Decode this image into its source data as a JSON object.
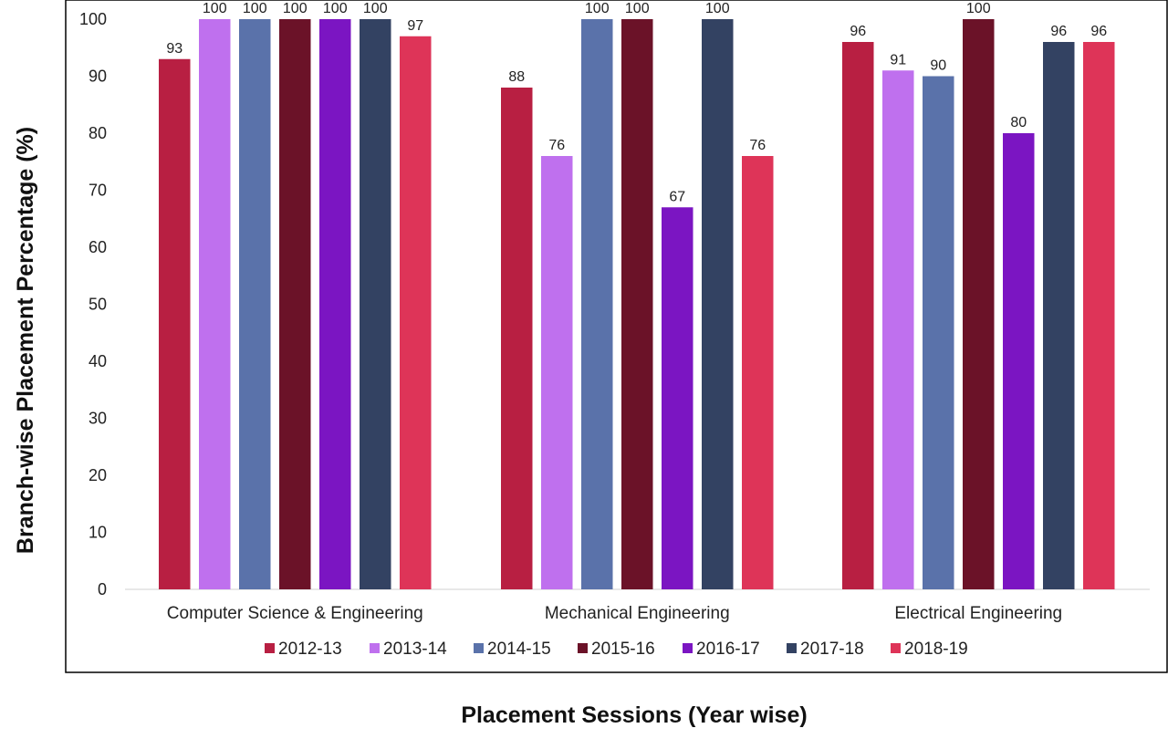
{
  "chart_data": {
    "type": "bar",
    "title": "",
    "xlabel": "Placement  Sessions  (Year wise)",
    "ylabel": "Branch-wise  Placement  Percentage   (%)",
    "ylim": [
      0,
      100
    ],
    "yticks": [
      0,
      10,
      20,
      30,
      40,
      50,
      60,
      70,
      80,
      90,
      100
    ],
    "grid": false,
    "legend_position": "bottom",
    "categories": [
      "Computer Science & Engineering",
      "Mechanical Engineering",
      "Electrical Engineering"
    ],
    "series": [
      {
        "name": "2012-13",
        "color": "#B81F42",
        "values": [
          93,
          88,
          96
        ]
      },
      {
        "name": "2013-14",
        "color": "#BF70EE",
        "values": [
          100,
          76,
          91
        ]
      },
      {
        "name": "2014-15",
        "color": "#5A72AA",
        "values": [
          100,
          100,
          90
        ]
      },
      {
        "name": "2015-16",
        "color": "#6B1228",
        "values": [
          100,
          100,
          100
        ]
      },
      {
        "name": "2016-17",
        "color": "#7B15C2",
        "values": [
          100,
          67,
          80
        ]
      },
      {
        "name": "2017-18",
        "color": "#334262",
        "values": [
          100,
          100,
          96
        ]
      },
      {
        "name": "2018-19",
        "color": "#DE3458",
        "values": [
          97,
          76,
          96
        ]
      }
    ]
  }
}
